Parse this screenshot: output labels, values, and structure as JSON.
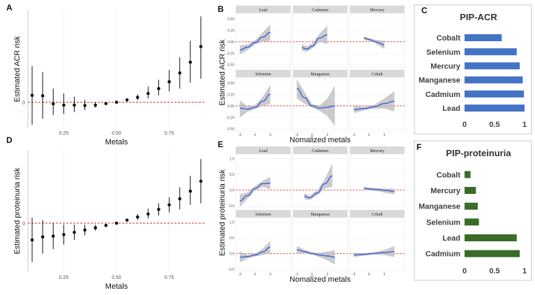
{
  "colors": {
    "point": "#111111",
    "refline": "#d62728",
    "smooth": "#3a5fd9",
    "band": "#b9b9b9",
    "strip": "#d9d9d9",
    "panelbg": "#ebebeb",
    "acr_bar": "#4472c4",
    "prot_bar": "#3a6b27"
  },
  "chart_data": [
    {
      "id": "A",
      "panel_label": "A",
      "type": "scatter",
      "ylabel": "Estimated ACR risk",
      "xlabel": "Metals",
      "xlim": [
        0.08,
        0.92
      ],
      "ylim": [
        -0.13,
        0.47
      ],
      "xticks": [
        0.25,
        0.5,
        0.75
      ],
      "xtick_labels": [
        "0.25",
        "0.50",
        "0.75"
      ],
      "yticks": [
        0
      ],
      "ytick_labels": [
        "0"
      ],
      "ref_y": 0,
      "points": [
        {
          "x": 0.1,
          "y": 0.035,
          "lo": -0.115,
          "hi": 0.185
        },
        {
          "x": 0.15,
          "y": 0.033,
          "lo": -0.085,
          "hi": 0.155
        },
        {
          "x": 0.2,
          "y": -0.008,
          "lo": -0.065,
          "hi": 0.07
        },
        {
          "x": 0.25,
          "y": -0.015,
          "lo": -0.06,
          "hi": 0.045
        },
        {
          "x": 0.3,
          "y": -0.015,
          "lo": -0.05,
          "hi": 0.028
        },
        {
          "x": 0.35,
          "y": -0.017,
          "lo": -0.04,
          "hi": 0.012
        },
        {
          "x": 0.4,
          "y": -0.015,
          "lo": -0.028,
          "hi": 0.0
        },
        {
          "x": 0.45,
          "y": -0.007,
          "lo": -0.012,
          "hi": 0.0
        },
        {
          "x": 0.5,
          "y": 0.0,
          "lo": 0.0,
          "hi": 0.0
        },
        {
          "x": 0.55,
          "y": 0.012,
          "lo": 0.005,
          "hi": 0.02
        },
        {
          "x": 0.6,
          "y": 0.025,
          "lo": 0.01,
          "hi": 0.04
        },
        {
          "x": 0.65,
          "y": 0.045,
          "lo": 0.02,
          "hi": 0.08
        },
        {
          "x": 0.7,
          "y": 0.07,
          "lo": 0.035,
          "hi": 0.115
        },
        {
          "x": 0.75,
          "y": 0.105,
          "lo": 0.055,
          "hi": 0.165
        },
        {
          "x": 0.8,
          "y": 0.15,
          "lo": 0.07,
          "hi": 0.23
        },
        {
          "x": 0.85,
          "y": 0.205,
          "lo": 0.1,
          "hi": 0.315
        },
        {
          "x": 0.9,
          "y": 0.285,
          "lo": 0.12,
          "hi": 0.44
        }
      ]
    },
    {
      "id": "D",
      "panel_label": "D",
      "type": "scatter",
      "ylabel": "Estimated proteinuria risk",
      "xlabel": "Metals",
      "xlim": [
        0.08,
        0.92
      ],
      "ylim": [
        -0.32,
        0.48
      ],
      "xticks": [
        0.25,
        0.5,
        0.75
      ],
      "xtick_labels": [
        "0.25",
        "0.50",
        "0.75"
      ],
      "yticks": [
        0
      ],
      "ytick_labels": [
        "0"
      ],
      "ref_y": 0,
      "points": [
        {
          "x": 0.1,
          "y": -0.11,
          "lo": -0.255,
          "hi": 0.035
        },
        {
          "x": 0.15,
          "y": -0.09,
          "lo": -0.2,
          "hi": 0.02
        },
        {
          "x": 0.2,
          "y": -0.085,
          "lo": -0.17,
          "hi": 0.0
        },
        {
          "x": 0.25,
          "y": -0.075,
          "lo": -0.14,
          "hi": -0.01
        },
        {
          "x": 0.3,
          "y": -0.06,
          "lo": -0.11,
          "hi": -0.01
        },
        {
          "x": 0.35,
          "y": -0.045,
          "lo": -0.08,
          "hi": -0.01
        },
        {
          "x": 0.4,
          "y": -0.03,
          "lo": -0.05,
          "hi": -0.01
        },
        {
          "x": 0.45,
          "y": -0.015,
          "lo": -0.025,
          "hi": -0.005
        },
        {
          "x": 0.5,
          "y": 0.0,
          "lo": 0.0,
          "hi": 0.0
        },
        {
          "x": 0.55,
          "y": 0.02,
          "lo": 0.01,
          "hi": 0.03
        },
        {
          "x": 0.6,
          "y": 0.04,
          "lo": 0.02,
          "hi": 0.06
        },
        {
          "x": 0.65,
          "y": 0.06,
          "lo": 0.03,
          "hi": 0.095
        },
        {
          "x": 0.7,
          "y": 0.09,
          "lo": 0.05,
          "hi": 0.13
        },
        {
          "x": 0.75,
          "y": 0.12,
          "lo": 0.07,
          "hi": 0.17
        },
        {
          "x": 0.8,
          "y": 0.16,
          "lo": 0.09,
          "hi": 0.235
        },
        {
          "x": 0.85,
          "y": 0.21,
          "lo": 0.12,
          "hi": 0.31
        },
        {
          "x": 0.9,
          "y": 0.275,
          "lo": 0.13,
          "hi": 0.42
        }
      ]
    },
    {
      "id": "B",
      "panel_label": "B",
      "type": "line",
      "ylabel": "Estimated ACR risk",
      "xlabel": "Nomalized metals",
      "xlim": [
        -3.8,
        7
      ],
      "ylim": [
        -0.55,
        0.62
      ],
      "xticks": [
        -3,
        0,
        3
      ],
      "xtick_labels": [
        "-3",
        "0",
        "3"
      ],
      "yticks": [
        -0.5,
        -0.25,
        0,
        0.25,
        0.5
      ],
      "ytick_labels": [
        "-0.50",
        "-0.25",
        "0.00",
        "0.25",
        "0.50"
      ],
      "ytick_side": "bottom_row",
      "ref_y": 0,
      "facets": [
        {
          "name": "Lead",
          "x": [
            -3,
            -1.5,
            0,
            1.5,
            3
          ],
          "y": [
            -0.18,
            -0.12,
            -0.02,
            0.1,
            0.2
          ],
          "lo": [
            -0.28,
            -0.18,
            -0.06,
            0.0,
            0.02
          ],
          "hi": [
            -0.08,
            -0.06,
            0.03,
            0.2,
            0.38
          ]
        },
        {
          "name": "Cadmium",
          "x": [
            -2,
            -1,
            0,
            1.5,
            3
          ],
          "y": [
            -0.13,
            -0.16,
            -0.1,
            0.08,
            0.15
          ],
          "lo": [
            -0.2,
            -0.22,
            -0.15,
            0.0,
            -0.05
          ],
          "hi": [
            -0.05,
            -0.1,
            -0.04,
            0.18,
            0.35
          ]
        },
        {
          "name": "Mercury",
          "x": [
            -1,
            0,
            1,
            2,
            3
          ],
          "y": [
            0.08,
            0.05,
            0.01,
            -0.03,
            -0.07
          ],
          "lo": [
            0.03,
            0.02,
            -0.02,
            -0.09,
            -0.16
          ],
          "hi": [
            0.12,
            0.08,
            0.05,
            0.03,
            0.02
          ]
        },
        {
          "name": "Selenium",
          "x": [
            -3,
            -1.5,
            0,
            1.5,
            3
          ],
          "y": [
            -0.05,
            -0.07,
            -0.03,
            0.1,
            0.25
          ],
          "lo": [
            -0.25,
            -0.13,
            -0.07,
            0.0,
            0.04
          ],
          "hi": [
            0.12,
            -0.01,
            0.01,
            0.2,
            0.46
          ]
        },
        {
          "name": "Manganese",
          "x": [
            -3,
            -1.5,
            0,
            1.5,
            3,
            4.5
          ],
          "y": [
            0.38,
            0.18,
            0.0,
            -0.05,
            -0.03,
            0.0
          ],
          "lo": [
            0.16,
            0.05,
            -0.04,
            -0.11,
            -0.22,
            -0.44
          ],
          "hi": [
            0.58,
            0.31,
            0.04,
            0.01,
            0.16,
            0.44
          ]
        },
        {
          "name": "Cobalt",
          "x": [
            -3,
            -1,
            1,
            3,
            5
          ],
          "y": [
            -0.08,
            -0.06,
            -0.02,
            0.05,
            0.1
          ],
          "lo": [
            -0.16,
            -0.1,
            -0.06,
            -0.06,
            -0.12
          ],
          "hi": [
            0.0,
            -0.02,
            0.02,
            0.16,
            0.32
          ]
        }
      ]
    },
    {
      "id": "E",
      "panel_label": "E",
      "type": "line",
      "ylabel": "Estimated proteinuria risk",
      "xlabel": "Nomalized metals",
      "xlim": [
        -3.8,
        7
      ],
      "ylim": [
        -0.55,
        1.15
      ],
      "xticks": [
        -3,
        0,
        3
      ],
      "xtick_labels": [
        "-3",
        "0",
        "3"
      ],
      "yticks": [
        -0.5,
        0,
        0.5,
        1
      ],
      "ytick_labels": [
        "-0.5",
        "0.0",
        "0.5",
        "1.0"
      ],
      "ref_y": 0,
      "facets": [
        {
          "name": "Lead",
          "x": [
            -3,
            -1.5,
            0,
            1.5,
            3
          ],
          "y": [
            -0.35,
            -0.18,
            0.05,
            0.2,
            0.22
          ],
          "lo": [
            -0.55,
            -0.28,
            -0.02,
            0.1,
            0.02
          ],
          "hi": [
            -0.15,
            -0.08,
            0.12,
            0.3,
            0.42
          ]
        },
        {
          "name": "Cadmium",
          "x": [
            -1.5,
            -0.5,
            1,
            2.5,
            4
          ],
          "y": [
            -0.2,
            -0.25,
            -0.1,
            0.2,
            0.45
          ],
          "lo": [
            -0.3,
            -0.32,
            -0.18,
            0.05,
            0.1
          ],
          "hi": [
            -0.1,
            -0.18,
            -0.02,
            0.35,
            0.85
          ]
        },
        {
          "name": "Mercury",
          "x": [
            -1,
            0.5,
            2,
            3.5,
            5
          ],
          "y": [
            0.05,
            0.03,
            0.01,
            -0.02,
            -0.05
          ],
          "lo": [
            0.0,
            -0.02,
            -0.05,
            -0.1,
            -0.14
          ],
          "hi": [
            0.1,
            0.07,
            0.06,
            0.05,
            0.04
          ]
        },
        {
          "name": "Selenium",
          "x": [
            -3,
            -1.5,
            0,
            1.5,
            3
          ],
          "y": [
            -0.12,
            -0.1,
            -0.05,
            0.05,
            0.2
          ],
          "lo": [
            -0.3,
            -0.16,
            -0.1,
            -0.05,
            0.0
          ],
          "hi": [
            0.06,
            -0.04,
            0.0,
            0.15,
            0.4
          ]
        },
        {
          "name": "Manganese",
          "x": [
            -3,
            -1.5,
            0,
            1.5,
            3,
            4.5
          ],
          "y": [
            0.12,
            0.06,
            0.0,
            -0.05,
            -0.08,
            -0.12
          ],
          "lo": [
            0.0,
            0.0,
            -0.04,
            -0.12,
            -0.22,
            -0.35
          ],
          "hi": [
            0.24,
            0.12,
            0.04,
            0.02,
            0.06,
            0.1
          ]
        },
        {
          "name": "Cobalt",
          "x": [
            -3,
            -1,
            1,
            3,
            5
          ],
          "y": [
            -0.05,
            -0.03,
            0.0,
            0.03,
            0.06
          ],
          "lo": [
            -0.12,
            -0.07,
            -0.04,
            -0.05,
            -0.12
          ],
          "hi": [
            0.02,
            0.01,
            0.04,
            0.11,
            0.24
          ]
        }
      ]
    },
    {
      "id": "C",
      "panel_label": "C",
      "type": "bar",
      "orientation": "horizontal",
      "title": "PIP-ACR",
      "categories": [
        "Cobalt",
        "Selenium",
        "Mercury",
        "Manganese",
        "Cadmium",
        "Lead"
      ],
      "values": [
        0.62,
        0.87,
        0.92,
        0.97,
        0.99,
        1.0
      ],
      "xlim": [
        0,
        1
      ],
      "xticks": [
        0,
        0.5,
        1
      ],
      "xtick_labels": [
        "0",
        "0.5",
        "1"
      ]
    },
    {
      "id": "F",
      "panel_label": "F",
      "type": "bar",
      "orientation": "horizontal",
      "title": "PIP-proteinuria",
      "categories": [
        "Cobalt",
        "Mercury",
        "Manganese",
        "Selenium",
        "Lead",
        "Cadmium"
      ],
      "values": [
        0.1,
        0.19,
        0.22,
        0.24,
        0.87,
        0.92
      ],
      "xlim": [
        0,
        1
      ],
      "xticks": [
        0,
        0.5,
        1
      ],
      "xtick_labels": [
        "0",
        "0.5",
        "1"
      ]
    }
  ]
}
